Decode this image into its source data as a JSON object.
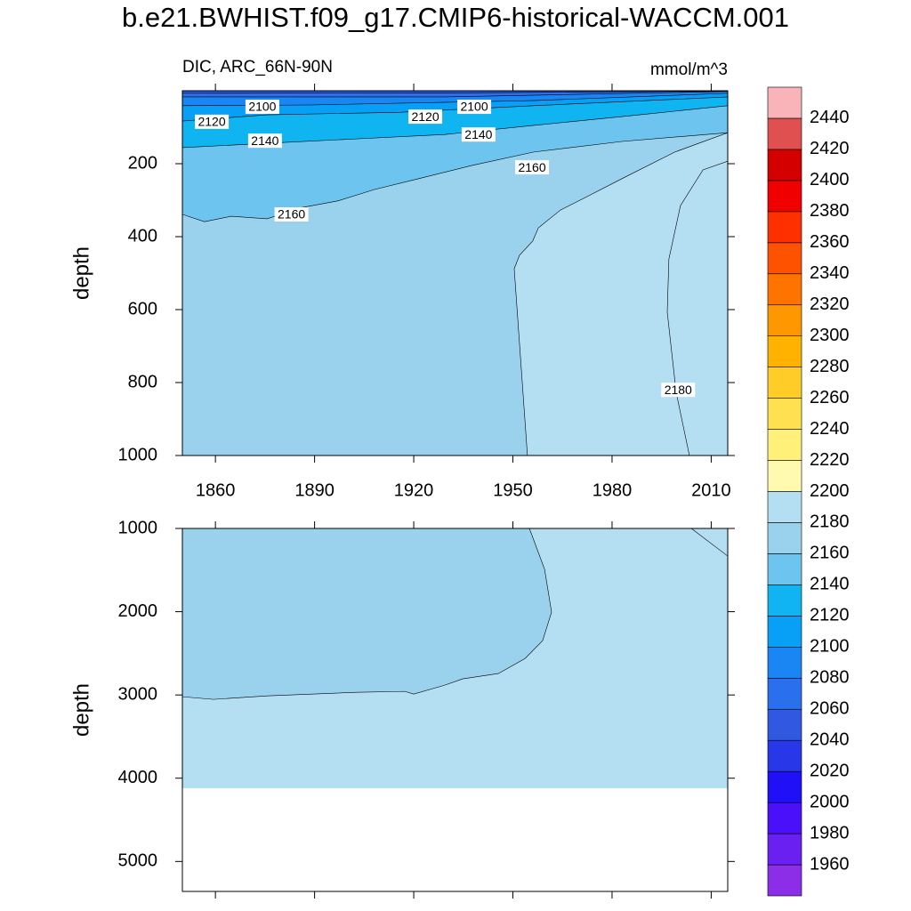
{
  "title": "b.e21.BWHIST.f09_g17.CMIP6-historical-WACCM.001",
  "subtitle": "DIC, ARC_66N-90N",
  "units": "mmol/m^3",
  "colorbar": {
    "levels": [
      1960,
      1980,
      2000,
      2020,
      2040,
      2060,
      2080,
      2100,
      2120,
      2140,
      2160,
      2180,
      2200,
      2220,
      2240,
      2260,
      2280,
      2300,
      2320,
      2340,
      2360,
      2380,
      2400,
      2420,
      2440
    ],
    "colors": [
      "#8c2ee8",
      "#6a20f0",
      "#4a10fa",
      "#2010f8",
      "#2838e8",
      "#3058e0",
      "#2a70ee",
      "#1a86f4",
      "#08a0f6",
      "#10b4f0",
      "#6cc4ef",
      "#9ad2ee",
      "#b4def2",
      "#fffab0",
      "#fff07a",
      "#ffe050",
      "#ffcc28",
      "#ffb200",
      "#ff9800",
      "#ff7400",
      "#ff5200",
      "#ff3000",
      "#f00000",
      "#d40000",
      "#e05050",
      "#f8b4b8"
    ]
  },
  "chart_data": [
    {
      "type": "contour",
      "ylabel": "depth",
      "xlim": [
        1850,
        2015
      ],
      "xticks": [
        1860,
        1890,
        1920,
        1950,
        1980,
        2010
      ],
      "xtick_labels": true,
      "ylim": [
        0,
        1000
      ],
      "yticks": [
        200,
        400,
        600,
        800,
        1000
      ],
      "base_level": 2160,
      "max_depth": 1000,
      "contours": [
        {
          "level": 2180,
          "close": "right",
          "x": [
            1954.4,
            1950.4,
            1952,
            1956,
            1957.7,
            1964.4,
            1972.5,
            1983,
            1999,
            2015
          ],
          "y": [
            1000,
            488,
            451,
            412,
            376,
            327,
            290,
            241,
            168,
            115
          ]
        },
        {
          "level": 2180,
          "close": "right",
          "x": [
            2003.4,
            1999.4,
            1996.7,
            1997.2,
            2000.7,
            2007.5,
            2015
          ],
          "y": [
            1000,
            827,
            607,
            461,
            315,
            217,
            193
          ]
        },
        {
          "level": 2160,
          "close": "top",
          "x": [
            1850,
            1856.7,
            1864.8,
            1875.6,
            1886.3,
            1897,
            1908,
            1921.5,
            1937.5,
            1956.3,
            1983,
            2015
          ],
          "y": [
            339,
            359,
            344,
            351,
            320,
            302,
            271,
            241,
            205,
            168,
            139,
            115
          ]
        },
        {
          "level": 2140,
          "close": "top",
          "x": [
            1850,
            1875.6,
            1902.5,
            1929.4,
            1956.3,
            1983,
            2015
          ],
          "y": [
            156,
            144,
            132,
            120,
            95,
            71,
            41
          ]
        },
        {
          "level": 2120,
          "close": "top",
          "x": [
            1850,
            1875.6,
            1916,
            1956.3,
            2015
          ],
          "y": [
            83,
            66,
            59,
            41,
            17
          ]
        },
        {
          "level": 2100,
          "close": "top",
          "x": [
            1850,
            1889,
            1956.3,
            2015
          ],
          "y": [
            41,
            39,
            27,
            7
          ]
        },
        {
          "level": 2080,
          "close": "top",
          "x": [
            1850,
            1929.4,
            2015
          ],
          "y": [
            17,
            17,
            2
          ]
        },
        {
          "level": 2060,
          "close": "top",
          "x": [
            1850,
            1929.4,
            2015
          ],
          "y": [
            7,
            6,
            1
          ]
        }
      ],
      "contour_labels": [
        {
          "value": 2100,
          "x": 1874.2,
          "y": 44
        },
        {
          "value": 2120,
          "x": 1858.9,
          "y": 85
        },
        {
          "value": 2140,
          "x": 1875,
          "y": 137
        },
        {
          "value": 2120,
          "x": 1923.5,
          "y": 71
        },
        {
          "value": 2100,
          "x": 1938.3,
          "y": 44
        },
        {
          "value": 2140,
          "x": 1939.6,
          "y": 120
        },
        {
          "value": 2160,
          "x": 1955.8,
          "y": 210
        },
        {
          "value": 2160,
          "x": 1883,
          "y": 339
        },
        {
          "value": 2180,
          "x": 2000,
          "y": 820
        }
      ]
    },
    {
      "type": "contour",
      "ylabel": "depth",
      "xlim": [
        1850,
        2015
      ],
      "xticks": [
        1860,
        1890,
        1920,
        1950,
        1980,
        2010
      ],
      "xtick_labels": false,
      "ylim": [
        1000,
        5360
      ],
      "yticks": [
        1000,
        2000,
        3000,
        4000,
        5000
      ],
      "base_level": 2180,
      "max_depth": 4120,
      "contours": [
        {
          "level": 2180,
          "close": "top-left",
          "x": [
            1850,
            1859.4,
            1875.6,
            1902.5,
            1917.3,
            1920,
            1929.4,
            1934.8,
            1945.6,
            1953.7,
            1959,
            1961.7,
            1959.6,
            1955
          ],
          "y": [
            3021,
            3053,
            3011,
            2968,
            2957,
            2989,
            2882,
            2807,
            2743,
            2561,
            2348,
            2005,
            1492,
            1000
          ]
        },
        {
          "level": 2180,
          "close": "none",
          "x": [
            2004,
            2015
          ],
          "y": [
            1000,
            1332
          ]
        }
      ],
      "contour_labels": []
    }
  ]
}
